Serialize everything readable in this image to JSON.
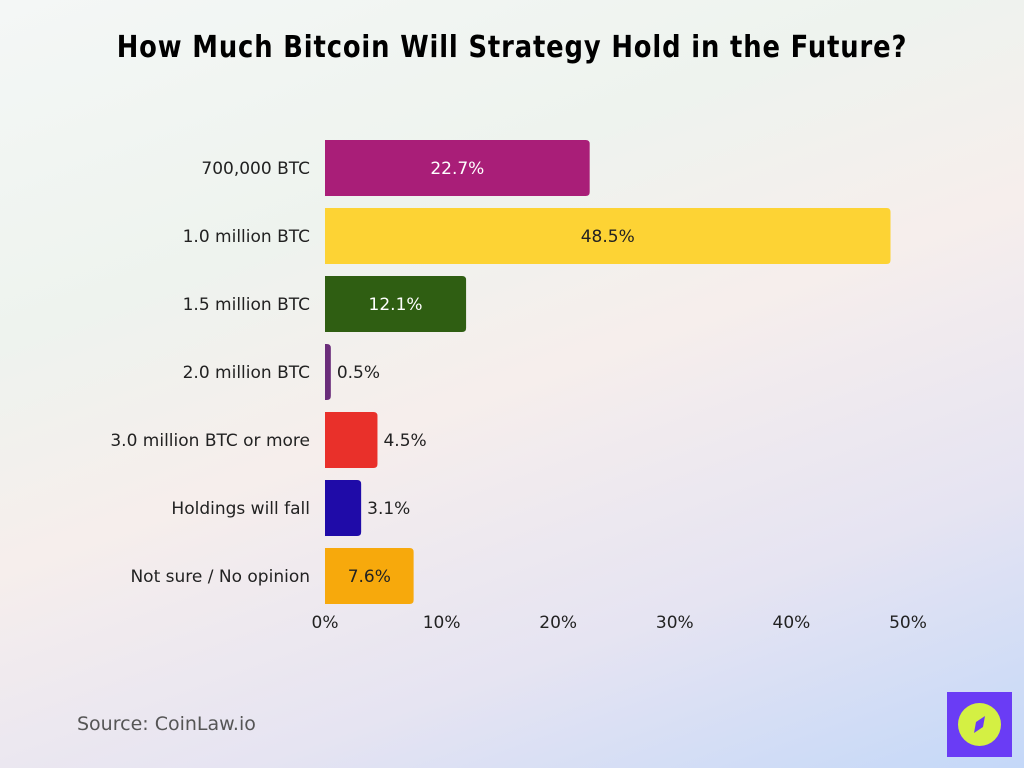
{
  "chart_data": {
    "type": "bar",
    "orientation": "horizontal",
    "title": "How Much Bitcoin Will Strategy Hold in the Future?",
    "categories": [
      "700,000 BTC",
      "1.0 million BTC",
      "1.5 million BTC",
      "2.0 million BTC",
      "3.0 million BTC or more",
      "Holdings will fall",
      "Not sure / No opinion"
    ],
    "values": [
      22.7,
      48.5,
      12.1,
      0.5,
      4.5,
      3.1,
      7.6
    ],
    "data_labels": [
      "22.7%",
      "48.5%",
      "12.1%",
      "0.5%",
      "4.5%",
      "3.1%",
      "7.6%"
    ],
    "colors": [
      "#A91E78",
      "#FDD334",
      "#2F5E12",
      "#6B2D7A",
      "#E9302A",
      "#1F0BA8",
      "#F7A90C"
    ],
    "xlim": [
      0,
      50
    ],
    "x_ticks": [
      "0%",
      "10%",
      "20%",
      "30%",
      "40%",
      "50%"
    ],
    "grid": false,
    "xlabel": "",
    "ylabel": ""
  },
  "source": "Source: CoinLaw.io",
  "logo": {
    "icon": "compass-icon",
    "bg": "#6A3CF5",
    "fg": "#D4F043"
  }
}
